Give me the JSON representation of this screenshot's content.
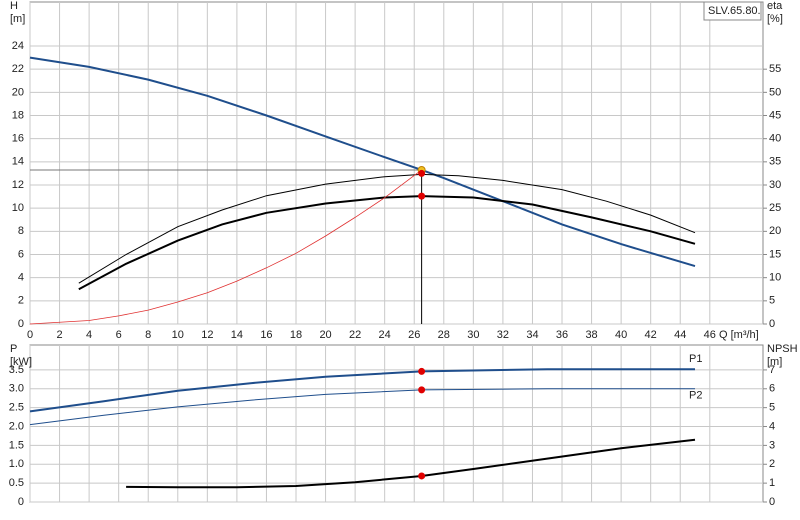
{
  "chart_data": [
    {
      "type": "line",
      "y_label": "H",
      "y_unit": "[m]",
      "y2_label": "eta",
      "y2_unit": "[%]",
      "x_label": "Q [m³/h]",
      "badge": "SLV.65.80.",
      "xlim": [
        0,
        49.6
      ],
      "ylim": [
        0,
        27.8
      ],
      "y2lim": [
        0,
        69.5
      ],
      "xticks": [
        0,
        2,
        4,
        6,
        8,
        10,
        12,
        14,
        16,
        18,
        20,
        22,
        24,
        26,
        28,
        30,
        32,
        34,
        36,
        38,
        40,
        42,
        44,
        46
      ],
      "yticks": [
        0,
        2,
        4,
        6,
        8,
        10,
        12,
        14,
        16,
        18,
        20,
        22,
        24
      ],
      "y2ticks": [
        0,
        5,
        10,
        15,
        20,
        25,
        30,
        35,
        40,
        45,
        50,
        55
      ],
      "grid": true,
      "series": [
        {
          "color": "#1f4e8c",
          "width": 2,
          "x": [
            0,
            4,
            8,
            12,
            16,
            20,
            24,
            26.5,
            28,
            32,
            36,
            40,
            45
          ],
          "values": [
            23,
            22.2,
            21.1,
            19.7,
            18,
            16.2,
            14.4,
            13.3,
            12.6,
            10.6,
            8.6,
            6.9,
            5
          ]
        },
        {
          "color": "#000000",
          "width": 2,
          "axis": "y2",
          "x": [
            3.3,
            6.5,
            10,
            13,
            16,
            20,
            24,
            26.5,
            30,
            34,
            38,
            42,
            45
          ],
          "values": [
            7.5,
            13,
            18,
            21.5,
            24,
            26,
            27.3,
            27.6,
            27.3,
            25.8,
            23,
            20,
            17.3
          ]
        },
        {
          "color": "#000000",
          "width": 1,
          "axis": "y2",
          "x": [
            3.3,
            6.5,
            10,
            13,
            16,
            20,
            24,
            26.5,
            29,
            32,
            36,
            39,
            42,
            45
          ],
          "values": [
            8.8,
            15,
            21,
            24.6,
            27.7,
            30.2,
            31.8,
            32.3,
            32,
            31,
            29,
            26.5,
            23.5,
            19.7
          ]
        },
        {
          "color": "#e03030",
          "width": 0.8,
          "x": [
            0,
            4,
            6,
            8,
            10,
            12,
            14,
            16,
            18,
            20,
            22,
            24,
            26.5
          ],
          "values": [
            0,
            0.3,
            0.7,
            1.2,
            1.9,
            2.7,
            3.7,
            4.85,
            6.1,
            7.6,
            9.2,
            10.9,
            13.3
          ]
        }
      ],
      "ref_lines": {
        "x": 26.5,
        "y": 13.3
      },
      "markers": [
        {
          "x": 26.5,
          "y": 13.3,
          "color": "#f0c020"
        },
        {
          "x": 26.5,
          "y": 13,
          "color": "#e00000"
        },
        {
          "x": 26.5,
          "y": 27.6,
          "axis": "y2",
          "color": "#e00000"
        }
      ]
    },
    {
      "type": "line",
      "y_label": "P",
      "y_unit": "[kW]",
      "y2_label": "NPSH",
      "y2_unit": "[m]",
      "xlim": [
        0,
        49.6
      ],
      "ylim": [
        0,
        4.16
      ],
      "y2lim": [
        0,
        8.32
      ],
      "yticks": [
        0,
        0.5,
        {
          "value": 1,
          "label": "1.0"
        },
        1.5,
        {
          "value": 2,
          "label": "2.0"
        },
        2.5,
        {
          "value": 3,
          "label": "3.0"
        },
        3.5
      ],
      "y2ticks": [
        0,
        1,
        2,
        3,
        4,
        5,
        6,
        7
      ],
      "grid": true,
      "series": [
        {
          "name": "P1",
          "color": "#1f4e8c",
          "width": 2,
          "x": [
            0,
            5,
            10,
            15,
            20,
            26.5,
            35,
            45
          ],
          "values": [
            2.4,
            2.67,
            2.95,
            3.15,
            3.32,
            3.46,
            3.52,
            3.52
          ]
        },
        {
          "name": "P2",
          "color": "#1f4e8c",
          "width": 1,
          "x": [
            0,
            5,
            10,
            15,
            20,
            26.5,
            35,
            45
          ],
          "values": [
            2.05,
            2.3,
            2.52,
            2.7,
            2.85,
            2.97,
            3,
            3
          ]
        },
        {
          "color": "#000000",
          "width": 2,
          "axis": "y2",
          "x": [
            6.5,
            10,
            14,
            18,
            22,
            26.5,
            30,
            35,
            40,
            45
          ],
          "values": [
            0.8,
            0.78,
            0.78,
            0.85,
            1.05,
            1.38,
            1.75,
            2.3,
            2.85,
            3.3
          ]
        }
      ],
      "markers": [
        {
          "x": 26.5,
          "y": 3.46,
          "color": "#e00000"
        },
        {
          "x": 26.5,
          "y": 2.97,
          "color": "#e00000"
        },
        {
          "x": 26.5,
          "y": 1.38,
          "axis": "y2",
          "color": "#e00000"
        }
      ]
    }
  ]
}
